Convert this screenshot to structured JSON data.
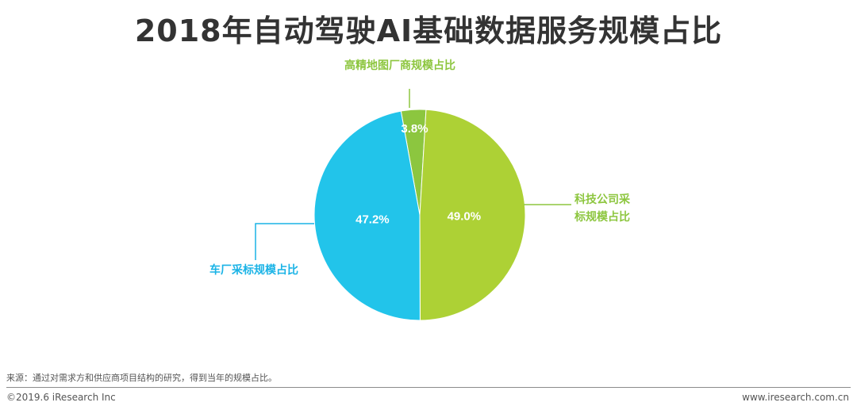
{
  "title": "2018年自动驾驶AI基础数据服务规模占比",
  "chart_data": {
    "type": "pie",
    "title": "2018年自动驾驶AI基础数据服务规模占比",
    "slices": [
      {
        "label": "高精地图厂商规模占比",
        "value": 3.8,
        "value_label": "3.8%",
        "color": "#8cc63f"
      },
      {
        "label": "科技公司采标规模占比",
        "value": 49.0,
        "value_label": "49.0%",
        "color": "#add135"
      },
      {
        "label": "车厂采标规模占比",
        "value": 47.2,
        "value_label": "47.2%",
        "color": "#22c4ea"
      }
    ],
    "slice_label_color": "#ffffff",
    "callout_color": "#8dc63f",
    "callout_color_alt": "#1ab3e6"
  },
  "footer": {
    "source": "来源：通过对需求方和供应商项目结构的研究，得到当年的规模占比。",
    "copyright": "©2019.6 iResearch Inc",
    "website": "www.iresearch.com.cn"
  }
}
